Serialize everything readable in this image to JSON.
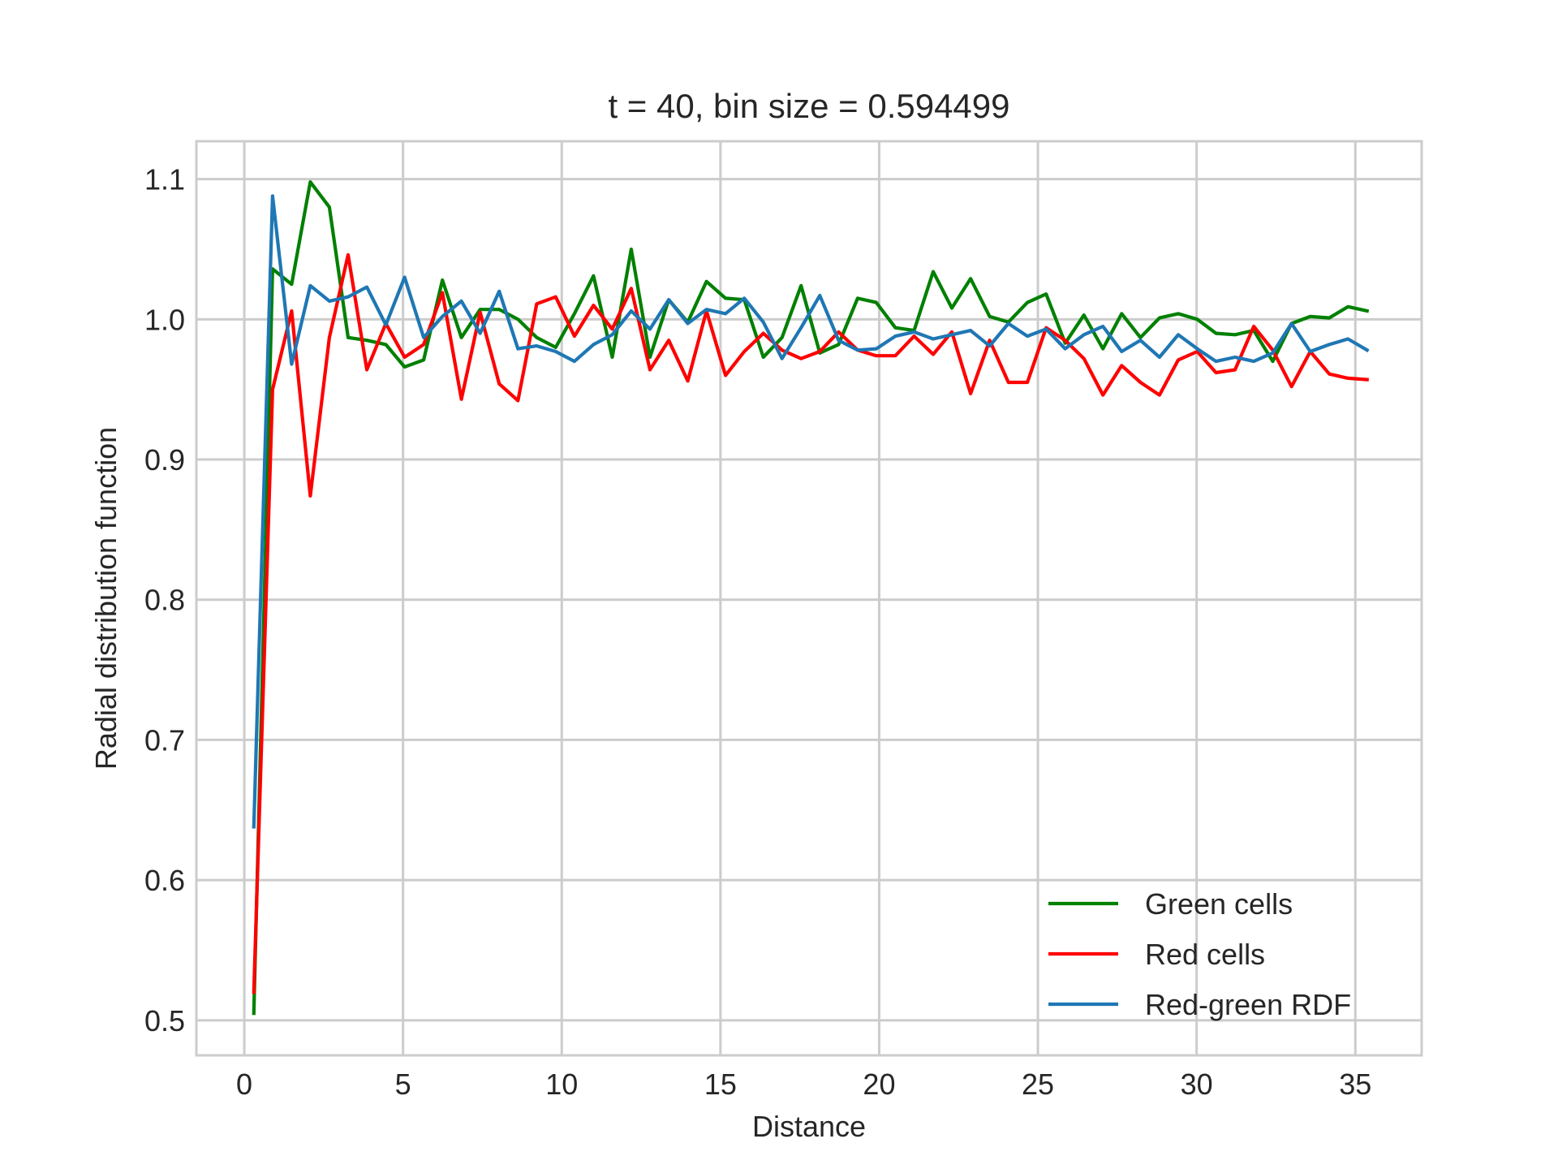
{
  "chart_data": {
    "type": "line",
    "title": "t = 40, bin size = 0.594499",
    "xlabel": "Distance",
    "ylabel": "Radial distribution function",
    "xlim": [
      -1.51,
      37.09
    ],
    "ylim": [
      0.475,
      1.127
    ],
    "xticks": [
      0,
      5,
      10,
      15,
      20,
      25,
      30,
      35
    ],
    "yticks": [
      0.5,
      0.6,
      0.7,
      0.8,
      0.9,
      1.0,
      1.1
    ],
    "xtick_labels": [
      "0",
      "5",
      "10",
      "15",
      "20",
      "25",
      "30",
      "35"
    ],
    "ytick_labels": [
      "0.5",
      "0.6",
      "0.7",
      "0.8",
      "0.9",
      "1.0",
      "1.1"
    ],
    "grid": true,
    "legend_position": "lower-right",
    "x": [
      0.3,
      0.89,
      1.49,
      2.08,
      2.68,
      3.27,
      3.86,
      4.46,
      5.05,
      5.65,
      6.24,
      6.84,
      7.43,
      8.03,
      8.62,
      9.21,
      9.81,
      10.4,
      11.0,
      11.59,
      12.19,
      12.78,
      13.37,
      13.97,
      14.56,
      15.16,
      15.75,
      16.35,
      16.94,
      17.54,
      18.13,
      18.72,
      19.32,
      19.91,
      20.51,
      21.1,
      21.7,
      22.29,
      22.88,
      23.48,
      24.07,
      24.67,
      25.26,
      25.86,
      26.45,
      27.05,
      27.64,
      28.23,
      28.83,
      29.42,
      30.02,
      30.61,
      31.21,
      31.8,
      32.4,
      32.99,
      33.58,
      34.18,
      34.77,
      35.37
    ],
    "series": [
      {
        "name": "Green cells",
        "color": "#008000",
        "values": [
          0.505,
          1.036,
          1.025,
          1.098,
          1.08,
          0.987,
          0.985,
          0.982,
          0.966,
          0.971,
          1.028,
          0.987,
          1.007,
          1.007,
          1.0,
          0.987,
          0.98,
          1.004,
          1.031,
          0.973,
          1.05,
          0.973,
          1.014,
          0.998,
          1.027,
          1.015,
          1.014,
          0.973,
          0.987,
          1.024,
          0.976,
          0.982,
          1.015,
          1.012,
          0.994,
          0.992,
          1.034,
          1.008,
          1.029,
          1.002,
          0.998,
          1.012,
          1.018,
          0.983,
          1.003,
          0.979,
          1.004,
          0.987,
          1.001,
          1.004,
          1.0,
          0.99,
          0.989,
          0.992,
          0.97,
          0.997,
          1.002,
          1.001,
          1.009,
          1.006
        ]
      },
      {
        "name": "Red cells",
        "color": "#ff0000",
        "values": [
          0.52,
          0.95,
          1.006,
          0.874,
          0.987,
          1.046,
          0.964,
          0.997,
          0.973,
          0.982,
          1.019,
          0.943,
          1.005,
          0.954,
          0.942,
          1.011,
          1.016,
          0.988,
          1.01,
          0.993,
          1.022,
          0.964,
          0.985,
          0.956,
          1.006,
          0.96,
          0.977,
          0.99,
          0.978,
          0.972,
          0.977,
          0.991,
          0.978,
          0.974,
          0.974,
          0.988,
          0.975,
          0.991,
          0.947,
          0.985,
          0.955,
          0.955,
          0.994,
          0.985,
          0.972,
          0.946,
          0.967,
          0.955,
          0.946,
          0.971,
          0.977,
          0.962,
          0.964,
          0.995,
          0.978,
          0.952,
          0.977,
          0.961,
          0.958,
          0.957
        ]
      },
      {
        "name": "Red-green RDF",
        "color": "#1f77b4",
        "values": [
          0.638,
          1.088,
          0.968,
          1.024,
          1.013,
          1.016,
          1.023,
          0.996,
          1.03,
          0.987,
          1.002,
          1.013,
          0.99,
          1.02,
          0.979,
          0.981,
          0.977,
          0.97,
          0.982,
          0.989,
          1.006,
          0.993,
          1.014,
          0.997,
          1.007,
          1.004,
          1.015,
          0.998,
          0.972,
          0.994,
          1.017,
          0.985,
          0.978,
          0.979,
          0.988,
          0.991,
          0.986,
          0.989,
          0.992,
          0.981,
          0.997,
          0.988,
          0.993,
          0.979,
          0.989,
          0.995,
          0.977,
          0.985,
          0.973,
          0.989,
          0.979,
          0.97,
          0.973,
          0.97,
          0.976,
          0.997,
          0.977,
          0.982,
          0.986,
          0.978
        ]
      }
    ]
  }
}
